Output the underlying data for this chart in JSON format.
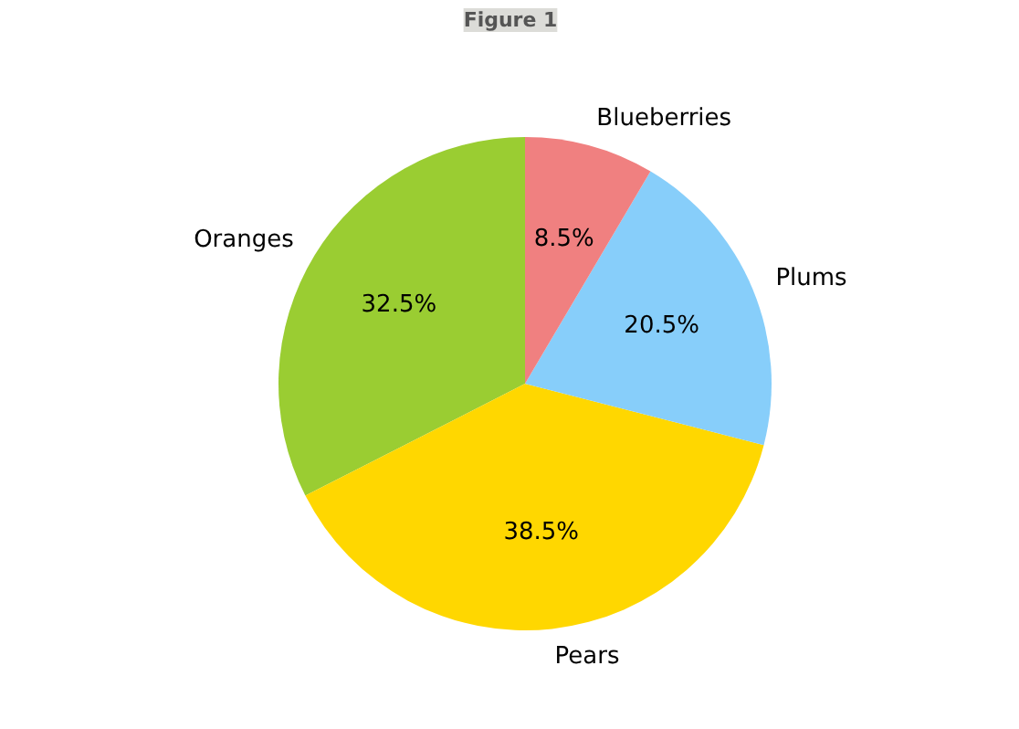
{
  "chart_data": {
    "type": "pie",
    "title": "Figure 1",
    "categories": [
      "Oranges",
      "Pears",
      "Plums",
      "Blueberries"
    ],
    "values": [
      32.5,
      38.5,
      20.5,
      8.5
    ],
    "colors": [
      "#9acd32",
      "#ffd700",
      "#87cefa",
      "#f08080"
    ],
    "value_labels": [
      "32.5%",
      "38.5%",
      "20.5%",
      "8.5%"
    ]
  }
}
